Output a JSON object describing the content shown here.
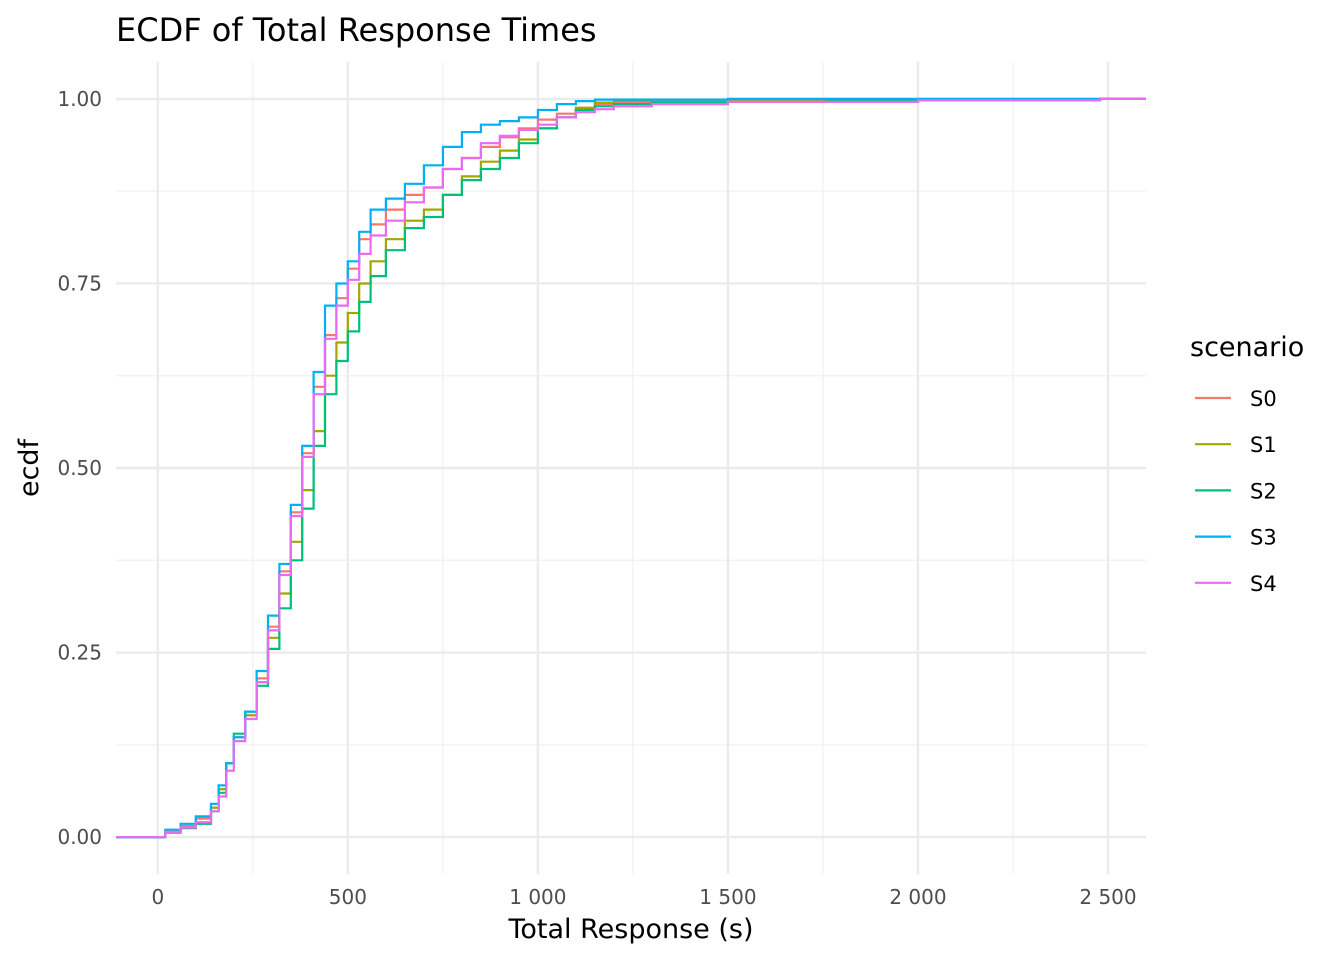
{
  "chart_data": {
    "type": "line",
    "subtype": "ecdf-step",
    "title": "ECDF of Total Response Times",
    "xlabel": "Total Response (s)",
    "ylabel": "ecdf",
    "xlim": [
      -110,
      2600
    ],
    "ylim": [
      -0.05,
      1.05
    ],
    "x_ticks": [
      0,
      500,
      1000,
      1500,
      2000,
      2500
    ],
    "x_tick_labels": [
      "0",
      "500",
      "1 000",
      "1 500",
      "2 000",
      "2 500"
    ],
    "y_ticks": [
      0,
      0.25,
      0.5,
      0.75,
      1
    ],
    "y_tick_labels": [
      "0.00",
      "0.25",
      "0.50",
      "0.75",
      "1.00"
    ],
    "grid": true,
    "legend": {
      "title": "scenario",
      "position": "right"
    },
    "series": [
      {
        "name": "S0",
        "color": "#F8766D",
        "x": [
          -110,
          0,
          20,
          60,
          100,
          140,
          160,
          180,
          200,
          230,
          260,
          290,
          320,
          350,
          380,
          410,
          440,
          470,
          500,
          530,
          560,
          600,
          650,
          700,
          750,
          800,
          850,
          900,
          950,
          1000,
          1050,
          1100,
          1150,
          1200,
          1300,
          1500,
          2000,
          2480,
          2600
        ],
        "y": [
          0,
          0,
          0.008,
          0.015,
          0.025,
          0.04,
          0.065,
          0.1,
          0.135,
          0.165,
          0.215,
          0.285,
          0.36,
          0.44,
          0.52,
          0.61,
          0.68,
          0.73,
          0.77,
          0.81,
          0.83,
          0.85,
          0.87,
          0.88,
          0.905,
          0.92,
          0.935,
          0.948,
          0.96,
          0.972,
          0.98,
          0.988,
          0.993,
          0.996,
          0.998,
          0.999,
          0.999,
          1,
          1
        ]
      },
      {
        "name": "S1",
        "color": "#A3A500",
        "x": [
          -110,
          0,
          20,
          60,
          100,
          140,
          160,
          180,
          200,
          230,
          260,
          290,
          320,
          350,
          380,
          410,
          440,
          470,
          500,
          530,
          560,
          600,
          650,
          700,
          750,
          800,
          850,
          900,
          950,
          1000,
          1050,
          1100,
          1150,
          1200,
          1300,
          1500,
          2000,
          2480,
          2600
        ],
        "y": [
          0,
          0,
          0.008,
          0.013,
          0.02,
          0.04,
          0.065,
          0.1,
          0.135,
          0.165,
          0.21,
          0.27,
          0.33,
          0.4,
          0.47,
          0.55,
          0.625,
          0.67,
          0.71,
          0.75,
          0.78,
          0.81,
          0.835,
          0.85,
          0.87,
          0.895,
          0.915,
          0.93,
          0.945,
          0.96,
          0.975,
          0.988,
          0.995,
          0.998,
          0.999,
          0.999,
          0.999,
          1,
          1
        ]
      },
      {
        "name": "S2",
        "color": "#00BF7D",
        "x": [
          -110,
          0,
          20,
          60,
          100,
          140,
          160,
          180,
          200,
          230,
          260,
          290,
          320,
          350,
          380,
          410,
          440,
          470,
          500,
          530,
          560,
          600,
          650,
          700,
          750,
          800,
          850,
          900,
          950,
          1000,
          1050,
          1100,
          1150,
          1200,
          1300,
          1500,
          1760,
          2000,
          2480,
          2600
        ],
        "y": [
          0,
          0,
          0.006,
          0.012,
          0.018,
          0.035,
          0.06,
          0.1,
          0.14,
          0.17,
          0.205,
          0.255,
          0.31,
          0.375,
          0.445,
          0.53,
          0.6,
          0.645,
          0.685,
          0.725,
          0.76,
          0.795,
          0.825,
          0.84,
          0.87,
          0.89,
          0.905,
          0.92,
          0.94,
          0.96,
          0.975,
          0.985,
          0.99,
          0.993,
          0.995,
          0.996,
          0.997,
          0.999,
          1,
          1
        ]
      },
      {
        "name": "S3",
        "color": "#00B0F6",
        "x": [
          -110,
          0,
          20,
          60,
          100,
          140,
          160,
          180,
          200,
          230,
          260,
          290,
          320,
          350,
          380,
          410,
          440,
          470,
          500,
          530,
          560,
          600,
          650,
          700,
          750,
          800,
          850,
          900,
          950,
          1000,
          1050,
          1100,
          1150,
          1200,
          1300,
          1500,
          2000,
          2480,
          2600
        ],
        "y": [
          0,
          0,
          0.01,
          0.018,
          0.028,
          0.045,
          0.07,
          0.1,
          0.135,
          0.17,
          0.225,
          0.3,
          0.37,
          0.45,
          0.53,
          0.63,
          0.72,
          0.75,
          0.78,
          0.82,
          0.85,
          0.865,
          0.885,
          0.91,
          0.935,
          0.955,
          0.965,
          0.97,
          0.975,
          0.985,
          0.993,
          0.997,
          0.999,
          0.999,
          0.999,
          1,
          1,
          1,
          1
        ]
      },
      {
        "name": "S4",
        "color": "#E76BF3",
        "x": [
          -110,
          0,
          20,
          60,
          100,
          140,
          160,
          180,
          200,
          230,
          260,
          290,
          320,
          350,
          380,
          410,
          440,
          470,
          500,
          530,
          560,
          600,
          650,
          700,
          750,
          800,
          850,
          900,
          950,
          1000,
          1050,
          1100,
          1150,
          1200,
          1300,
          1500,
          2000,
          2480,
          2600
        ],
        "y": [
          0,
          0,
          0.007,
          0.013,
          0.02,
          0.035,
          0.055,
          0.09,
          0.13,
          0.16,
          0.21,
          0.28,
          0.355,
          0.435,
          0.515,
          0.6,
          0.675,
          0.72,
          0.755,
          0.79,
          0.815,
          0.835,
          0.86,
          0.88,
          0.905,
          0.92,
          0.94,
          0.95,
          0.958,
          0.965,
          0.975,
          0.982,
          0.986,
          0.99,
          0.993,
          0.996,
          0.998,
          1,
          1
        ]
      }
    ]
  }
}
